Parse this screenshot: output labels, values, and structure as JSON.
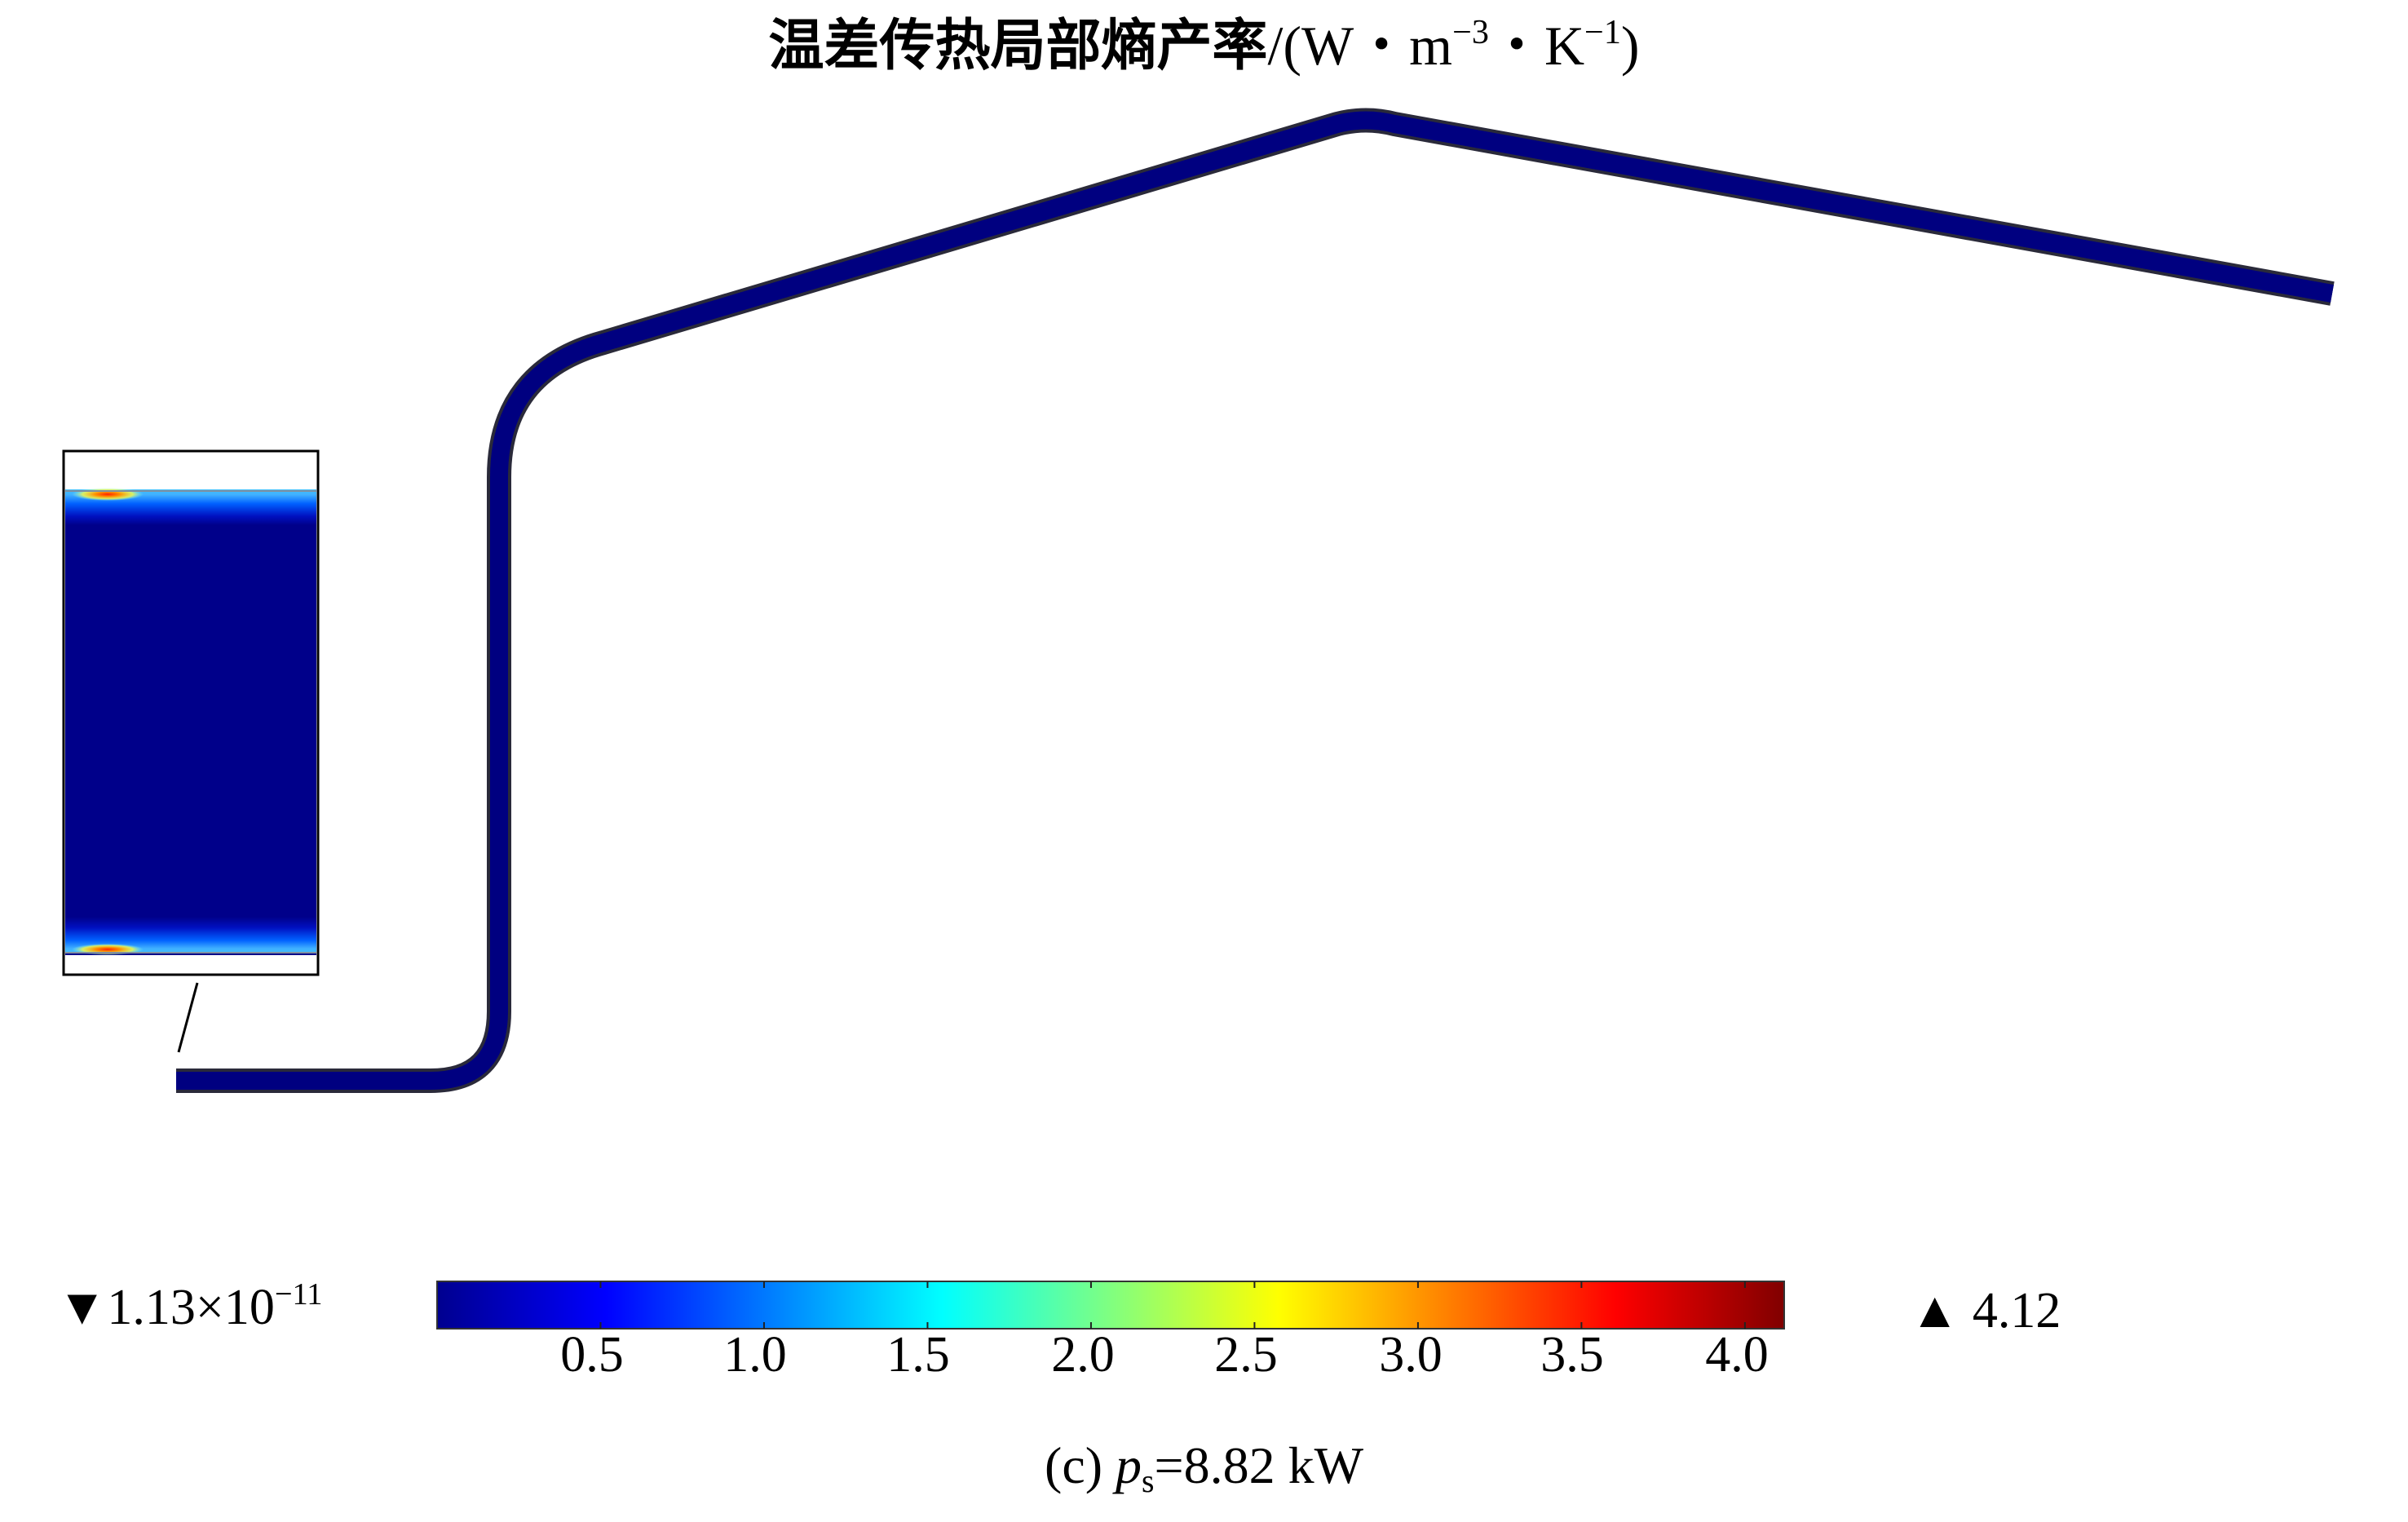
{
  "title": {
    "quantity": "温差传热局部熵产率",
    "unit_prefix": "/(W・m",
    "unit_exp1": "−3",
    "unit_mid": "・K",
    "unit_exp2": "−1",
    "unit_suffix": ")"
  },
  "colorbar": {
    "colormap": "jet",
    "min_marker": "▼",
    "min_base": "1.13×10",
    "min_exp": "−11",
    "max_marker": "▲",
    "max_value": "4.12",
    "range": [
      1.13e-11,
      4.12
    ],
    "ticks": [
      "0.5",
      "1.0",
      "1.5",
      "2.0",
      "2.5",
      "3.0",
      "3.5",
      "4.0"
    ],
    "colors": [
      "#00008f",
      "#0000ff",
      "#0080ff",
      "#00ffff",
      "#80ff80",
      "#ffff00",
      "#ff8000",
      "#ff0000",
      "#800000"
    ]
  },
  "caption": {
    "prefix": "(c) ",
    "var": "p",
    "sub": "s",
    "value": "=8.82 kW"
  },
  "pipe_color": "#000080",
  "inset": {
    "bulk_color": "#00008a"
  }
}
